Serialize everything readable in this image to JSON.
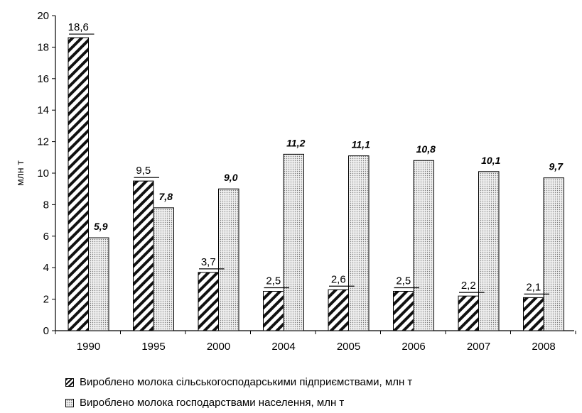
{
  "chart_data": {
    "type": "bar",
    "categories": [
      "1990",
      "1995",
      "2000",
      "2004",
      "2005",
      "2006",
      "2007",
      "2008"
    ],
    "series": [
      {
        "name": "Вироблено молока сільськогосподарськими підприємствами, млн т",
        "values": [
          18.6,
          9.5,
          3.7,
          2.5,
          2.6,
          2.5,
          2.2,
          2.1
        ],
        "labels": [
          "18,6",
          "9,5",
          "3,7",
          "2,5",
          "2,6",
          "2,5",
          "2,2",
          "2,1"
        ],
        "fill": "hatched-diagonal",
        "color": "#111111"
      },
      {
        "name": "Вироблено молока господарствами населення, млн  т",
        "values": [
          5.9,
          7.8,
          9.0,
          11.2,
          11.1,
          10.8,
          10.1,
          9.7
        ],
        "labels": [
          "5,9",
          "7,8",
          "9,0",
          "11,2",
          "11,1",
          "10,8",
          "10,1",
          "9,7"
        ],
        "fill": "dotted",
        "color": "#f0f0f0"
      }
    ],
    "ylabel": "млн т",
    "xlabel": "",
    "ylim": [
      0,
      20
    ],
    "yticks": [
      "0",
      "2",
      "4",
      "6",
      "8",
      "10",
      "12",
      "14",
      "16",
      "18",
      "20"
    ],
    "grid": false,
    "legend_position": "bottom"
  }
}
